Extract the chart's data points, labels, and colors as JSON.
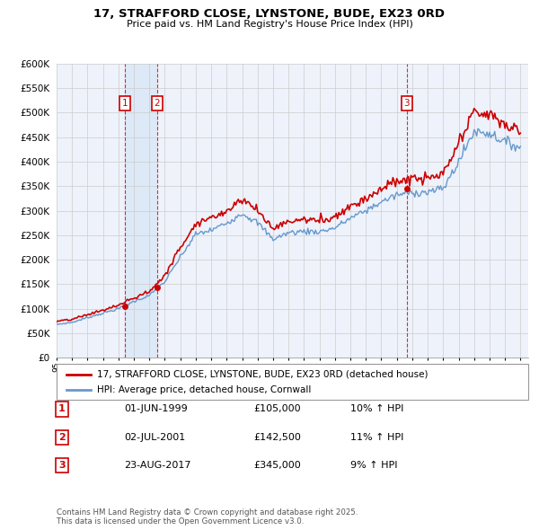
{
  "title": "17, STRAFFORD CLOSE, LYNSTONE, BUDE, EX23 0RD",
  "subtitle": "Price paid vs. HM Land Registry's House Price Index (HPI)",
  "ylim": [
    0,
    600000
  ],
  "yticks": [
    0,
    50000,
    100000,
    150000,
    200000,
    250000,
    300000,
    350000,
    400000,
    450000,
    500000,
    550000,
    600000
  ],
  "ytick_labels": [
    "£0",
    "£50K",
    "£100K",
    "£150K",
    "£200K",
    "£250K",
    "£300K",
    "£350K",
    "£400K",
    "£450K",
    "£500K",
    "£550K",
    "£600K"
  ],
  "xlim_start": 1995.0,
  "xlim_end": 2025.5,
  "sale_color": "#cc0000",
  "hpi_color": "#6699cc",
  "hpi_fill_color": "#dce9f7",
  "bg_color": "#eef2fb",
  "grid_color": "#cccccc",
  "purchases": [
    {
      "year": 1999.42,
      "price": 105000,
      "label": "1",
      "date_str": "01-JUN-1999",
      "price_str": "£105,000",
      "pct_str": "10% ↑ HPI"
    },
    {
      "year": 2001.5,
      "price": 142500,
      "label": "2",
      "date_str": "02-JUL-2001",
      "price_str": "£142,500",
      "pct_str": "11% ↑ HPI"
    },
    {
      "year": 2017.65,
      "price": 345000,
      "label": "3",
      "date_str": "23-AUG-2017",
      "price_str": "£345,000",
      "pct_str": "9% ↑ HPI"
    }
  ],
  "legend_label_property": "17, STRAFFORD CLOSE, LYNSTONE, BUDE, EX23 0RD (detached house)",
  "legend_label_hpi": "HPI: Average price, detached house, Cornwall",
  "footer": "Contains HM Land Registry data © Crown copyright and database right 2025.\nThis data is licensed under the Open Government Licence v3.0."
}
